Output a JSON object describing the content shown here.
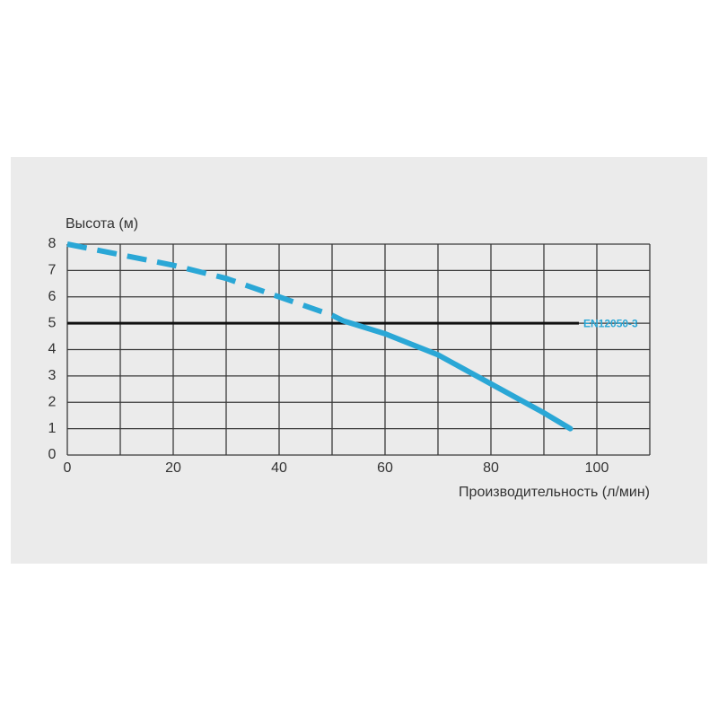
{
  "chart_data": {
    "type": "line",
    "title": "Высота (м)",
    "x_label": "Производительность (л/мин)",
    "series": [
      {
        "color": "#2aa7d6",
        "line_style": "dashed",
        "x": [
          0,
          10,
          20,
          30,
          40,
          50,
          52
        ],
        "values": [
          8,
          7.6,
          7.2,
          6.7,
          6.0,
          5.3,
          5.1
        ]
      },
      {
        "color": "#2aa7d6",
        "line_style": "solid",
        "x": [
          52,
          60,
          70,
          80,
          90,
          95
        ],
        "values": [
          5.1,
          4.6,
          3.8,
          2.7,
          1.6,
          1.0
        ]
      }
    ],
    "reference_line": {
      "value": 5,
      "label": "EN12050-3",
      "color": "#111111",
      "label_color": "#2aa7d6"
    },
    "xlim": [
      0,
      110
    ],
    "xticks": [
      0,
      20,
      40,
      60,
      80,
      100
    ],
    "xgrid": [
      0,
      10,
      20,
      30,
      40,
      50,
      60,
      70,
      80,
      90,
      100,
      110
    ],
    "ylim": [
      0,
      8
    ],
    "yticks": [
      0,
      1,
      2,
      3,
      4,
      5,
      6,
      7,
      8
    ],
    "grid": true
  }
}
